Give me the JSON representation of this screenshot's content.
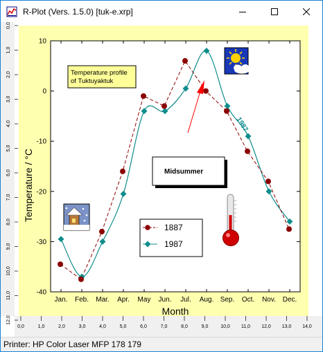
{
  "window": {
    "title": "R-Plot (Vers. 1.5.0) [tuk-e.xrp]",
    "minimize_icon": "minimize-icon",
    "maximize_icon": "maximize-icon",
    "close_icon": "close-icon"
  },
  "ruler": {
    "x_labels": [
      "0,0",
      "1,0",
      "2,0",
      "3,0",
      "4,0",
      "5,0",
      "6,0",
      "7,0",
      "8,0",
      "9,0",
      "10,0",
      "11,0",
      "12,0",
      "13,0",
      "14,0"
    ],
    "y_labels": [
      "0,0",
      "1,0",
      "2,0",
      "3,0",
      "4,0",
      "5,0",
      "6,0",
      "7,0",
      "8,0",
      "9,0",
      "10,0",
      "11,0",
      "12,0"
    ]
  },
  "status": {
    "printer": "Printer: HP Color Laser MFP 178 179"
  },
  "colors": {
    "paper": "#ffffb0",
    "series_1887": "#8b0000",
    "series_1987": "#0f8c8c",
    "arrow": "#ff0000"
  },
  "annotations": {
    "profile_line1": "Temperature profile",
    "profile_line2": "of Tuktuyaktuk",
    "midsummer": "Midsummer",
    "curve_label": "1987"
  },
  "icons": [
    "sun-cloud-icon",
    "snowy-house-icon",
    "thermometer-icon"
  ],
  "chart_data": {
    "type": "line",
    "xlabel": "Month",
    "ylabel": "Temperature / °C",
    "categories": [
      "Jan.",
      "Feb.",
      "Mar.",
      "Apr.",
      "May",
      "Jun.",
      "Jul.",
      "Aug.",
      "Sep.",
      "Oct.",
      "Nov.",
      "Dec."
    ],
    "ylim": [
      -40,
      10
    ],
    "yticks": [
      10,
      0,
      -10,
      -20,
      -30,
      -40
    ],
    "legend_position": "bottom-center",
    "series": [
      {
        "name": "1887",
        "marker": "circle",
        "line": "dashed",
        "values": [
          -34.5,
          -37.5,
          -28,
          -16,
          -1,
          -3,
          6,
          0,
          -4,
          -12,
          -18,
          -27.5
        ]
      },
      {
        "name": "1987",
        "marker": "diamond",
        "line": "smooth",
        "values": [
          -29.5,
          -37,
          -30,
          -20.5,
          -4,
          -4,
          0.5,
          8,
          -3,
          -9,
          -20,
          -26
        ]
      }
    ]
  }
}
